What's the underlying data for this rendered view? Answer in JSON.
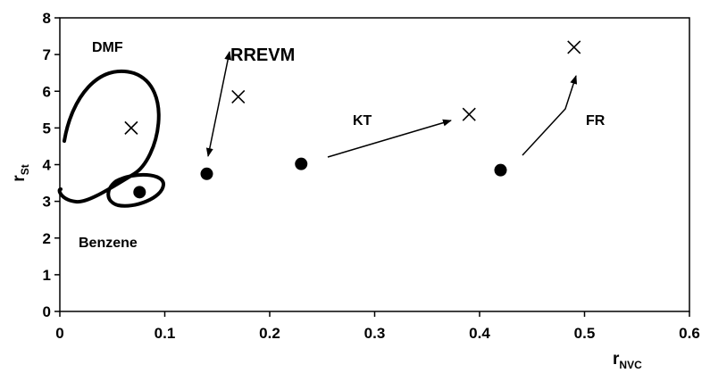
{
  "chart_data": {
    "type": "scatter",
    "xlabel": "r",
    "xlabel_sub": "NVC",
    "ylabel": "r",
    "ylabel_sub": "St",
    "xlim": [
      0,
      0.6
    ],
    "ylim": [
      0,
      8
    ],
    "x_ticks": [
      "0",
      "0.1",
      "0.2",
      "0.3",
      "0.4",
      "0.5",
      "0.6"
    ],
    "y_ticks": [
      "0",
      "1",
      "2",
      "3",
      "4",
      "5",
      "6",
      "7",
      "8"
    ],
    "grid": false,
    "series": [
      {
        "marker": "cross",
        "points": [
          {
            "x": 0.068,
            "y": 5.0
          },
          {
            "x": 0.17,
            "y": 5.85
          },
          {
            "x": 0.39,
            "y": 5.37
          },
          {
            "x": 0.49,
            "y": 7.2
          }
        ]
      },
      {
        "marker": "filled-circle",
        "points": [
          {
            "x": 0.076,
            "y": 3.25
          },
          {
            "x": 0.14,
            "y": 3.75
          },
          {
            "x": 0.23,
            "y": 4.02
          },
          {
            "x": 0.42,
            "y": 3.85
          }
        ]
      }
    ],
    "annotations": [
      {
        "text": "DMF",
        "x": 0.032,
        "y": 7.3
      },
      {
        "text": "RREVM",
        "x": 0.17,
        "y": 7.05
      },
      {
        "text": "KT",
        "x": 0.29,
        "y": 5.2
      },
      {
        "text": "FR",
        "x": 0.52,
        "y": 5.2
      },
      {
        "text": "Benzene",
        "x": 0.046,
        "y": 1.8
      }
    ]
  }
}
